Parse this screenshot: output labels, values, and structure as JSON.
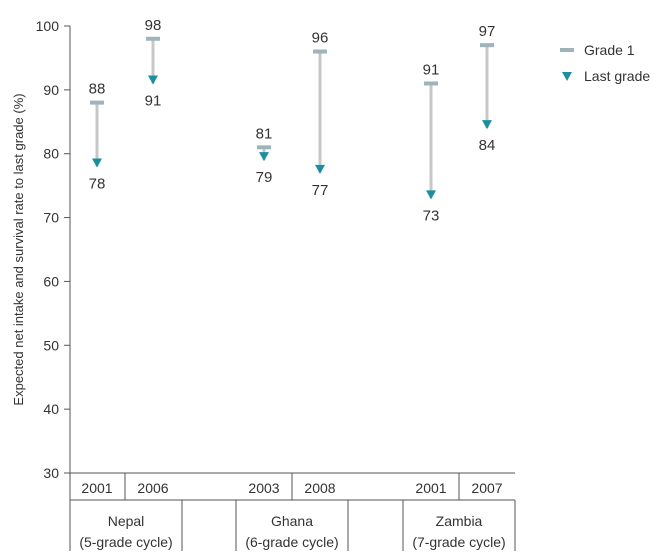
{
  "chart_data": {
    "type": "range_dot",
    "ylabel": "Expected net intake and survival rate to last grade (%)",
    "ylim": [
      30,
      100
    ],
    "yticks": [
      "100",
      "90",
      "80",
      "70",
      "60",
      "50",
      "40",
      "30"
    ],
    "legend": {
      "position": "top-right",
      "entries": [
        {
          "name": "Grade 1",
          "marker": "dash",
          "color": "#9fb3bd"
        },
        {
          "name": "Last grade",
          "marker": "triangle-down",
          "color": "#1b8fa0"
        }
      ]
    },
    "groups": [
      {
        "name_line1": "Nepal",
        "name_line2": "(5-grade cycle)",
        "points": [
          {
            "year": "2001",
            "grade1": 88,
            "last_grade": 78,
            "grade1_label": "88",
            "last_label": "78"
          },
          {
            "year": "2006",
            "grade1": 98,
            "last_grade": 91,
            "grade1_label": "98",
            "last_label": "91"
          }
        ]
      },
      {
        "name_line1": "Ghana",
        "name_line2": "(6-grade cycle)",
        "points": [
          {
            "year": "2003",
            "grade1": 81,
            "last_grade": 79,
            "grade1_label": "81",
            "last_label": "79"
          },
          {
            "year": "2008",
            "grade1": 96,
            "last_grade": 77,
            "grade1_label": "96",
            "last_label": "77"
          }
        ]
      },
      {
        "name_line1": "Zambia",
        "name_line2": "(7-grade cycle)",
        "points": [
          {
            "year": "2001",
            "grade1": 91,
            "last_grade": 73,
            "grade1_label": "91",
            "last_label": "73"
          },
          {
            "year": "2007",
            "grade1": 97,
            "last_grade": 84,
            "grade1_label": "97",
            "last_label": "84"
          }
        ]
      }
    ],
    "colors": {
      "connector": "#c7c7c7",
      "grade1": "#9fb3bd",
      "last_grade": "#1b8fa0",
      "axis": "#555555",
      "table_border": "#555555"
    }
  }
}
